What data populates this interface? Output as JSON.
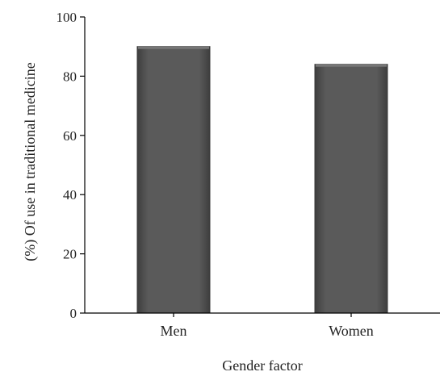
{
  "chart_data": {
    "type": "bar",
    "categories": [
      "Men",
      "Women"
    ],
    "values": [
      90,
      84
    ],
    "title": "",
    "xlabel": "Gender factor",
    "ylabel": "(%) Of use in traditional medicine",
    "ylim": [
      0,
      100
    ],
    "yticks": [
      0,
      20,
      40,
      60,
      80,
      100
    ],
    "grid": false,
    "legend": "none",
    "colors": {
      "bar": "#555555",
      "bar_edge": "#3a3a3a",
      "axis": "#000000"
    }
  }
}
